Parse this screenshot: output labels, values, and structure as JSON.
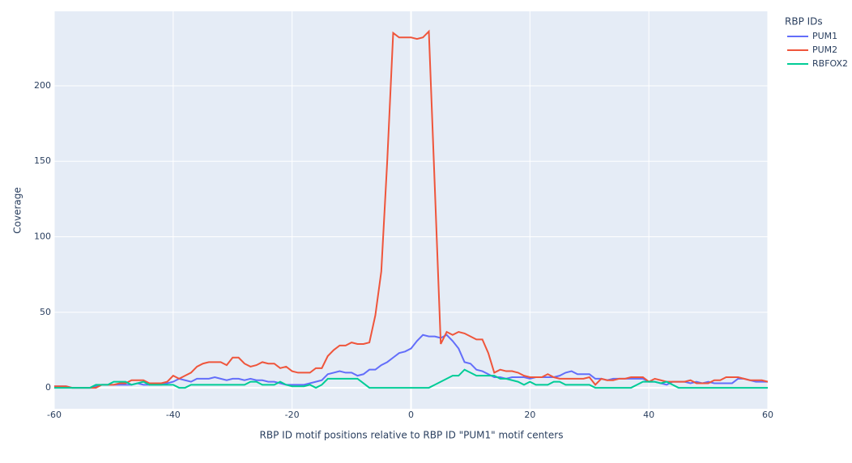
{
  "chart_data": {
    "type": "line",
    "x_label": "RBP ID motif positions relative to RBP ID \"PUM1\" motif centers",
    "y_label": "Coverage",
    "legend_title": "RBP IDs",
    "legend_position": "right",
    "grid": true,
    "x": [
      -60,
      -59,
      -58,
      -57,
      -56,
      -55,
      -54,
      -53,
      -52,
      -51,
      -50,
      -49,
      -48,
      -47,
      -46,
      -45,
      -44,
      -43,
      -42,
      -41,
      -40,
      -39,
      -38,
      -37,
      -36,
      -35,
      -34,
      -33,
      -32,
      -31,
      -30,
      -29,
      -28,
      -27,
      -26,
      -25,
      -24,
      -23,
      -22,
      -21,
      -20,
      -19,
      -18,
      -17,
      -16,
      -15,
      -14,
      -13,
      -12,
      -11,
      -10,
      -9,
      -8,
      -7,
      -6,
      -5,
      -4,
      -3,
      -2,
      -1,
      0,
      1,
      2,
      3,
      4,
      5,
      6,
      7,
      8,
      9,
      10,
      11,
      12,
      13,
      14,
      15,
      16,
      17,
      18,
      19,
      20,
      21,
      22,
      23,
      24,
      25,
      26,
      27,
      28,
      29,
      30,
      31,
      32,
      33,
      34,
      35,
      36,
      37,
      38,
      39,
      40,
      41,
      42,
      43,
      44,
      45,
      46,
      47,
      48,
      49,
      50,
      51,
      52,
      53,
      54,
      55,
      56,
      57,
      58,
      59,
      60
    ],
    "series": [
      {
        "name": "PUM1",
        "color": "#636efa",
        "values": [
          1,
          1,
          1,
          0,
          0,
          0,
          0,
          1,
          2,
          2,
          2,
          2,
          2,
          2,
          3,
          2,
          2,
          2,
          2,
          3,
          4,
          6,
          5,
          4,
          6,
          6,
          6,
          7,
          6,
          5,
          6,
          6,
          5,
          6,
          5,
          5,
          4,
          4,
          3,
          2,
          2,
          2,
          2,
          3,
          4,
          5,
          9,
          10,
          11,
          10,
          10,
          8,
          9,
          12,
          12,
          15,
          17,
          20,
          23,
          24,
          26,
          31,
          35,
          34,
          34,
          33,
          35,
          31,
          26,
          17,
          16,
          12,
          11,
          9,
          7,
          7,
          6,
          7,
          7,
          7,
          6,
          7,
          7,
          7,
          7,
          8,
          10,
          11,
          9,
          9,
          9,
          6,
          6,
          5,
          6,
          6,
          6,
          6,
          6,
          6,
          4,
          4,
          3,
          2,
          4,
          4,
          4,
          3,
          4,
          3,
          4,
          3,
          3,
          3,
          3,
          6,
          6,
          5,
          4,
          4,
          4
        ]
      },
      {
        "name": "PUM2",
        "color": "#EF553B",
        "values": [
          1,
          1,
          1,
          0,
          0,
          0,
          0,
          0,
          2,
          2,
          2,
          3,
          3,
          5,
          5,
          5,
          3,
          3,
          3,
          4,
          8,
          6,
          8,
          10,
          14,
          16,
          17,
          17,
          17,
          15,
          20,
          20,
          16,
          14,
          15,
          17,
          16,
          16,
          13,
          14,
          11,
          10,
          10,
          10,
          13,
          13,
          21,
          25,
          28,
          28,
          30,
          29,
          29,
          30,
          48,
          77,
          150,
          235,
          232,
          232,
          232,
          231,
          232,
          236,
          133,
          29,
          37,
          35,
          37,
          36,
          34,
          32,
          32,
          23,
          10,
          12,
          11,
          11,
          10,
          8,
          7,
          7,
          7,
          9,
          7,
          6,
          6,
          6,
          6,
          6,
          7,
          2,
          6,
          5,
          5,
          6,
          6,
          7,
          7,
          7,
          4,
          6,
          5,
          4,
          4,
          4,
          4,
          5,
          3,
          3,
          3,
          5,
          5,
          7,
          7,
          7,
          6,
          5,
          5,
          5,
          4
        ]
      },
      {
        "name": "RBFOX2",
        "color": "#00cc96",
        "values": [
          0,
          0,
          0,
          0,
          0,
          0,
          0,
          2,
          2,
          2,
          4,
          4,
          4,
          2,
          3,
          4,
          2,
          2,
          2,
          2,
          2,
          0,
          0,
          2,
          2,
          2,
          2,
          2,
          2,
          2,
          2,
          2,
          2,
          4,
          4,
          2,
          2,
          2,
          4,
          2,
          1,
          1,
          1,
          2,
          0,
          2,
          6,
          6,
          6,
          6,
          6,
          6,
          3,
          0,
          0,
          0,
          0,
          0,
          0,
          0,
          0,
          0,
          0,
          0,
          2,
          4,
          6,
          8,
          8,
          12,
          10,
          8,
          8,
          8,
          8,
          6,
          6,
          5,
          4,
          2,
          4,
          2,
          2,
          2,
          4,
          4,
          2,
          2,
          2,
          2,
          2,
          0,
          0,
          0,
          0,
          0,
          0,
          0,
          2,
          4,
          4,
          4,
          3,
          4,
          2,
          0,
          0,
          0,
          0,
          0,
          0,
          0,
          0,
          0,
          0,
          0,
          0,
          0,
          0,
          0,
          0
        ]
      }
    ],
    "xlim": [
      -60,
      60
    ],
    "xticks": [
      -60,
      -40,
      -20,
      0,
      20,
      40,
      60
    ],
    "ylim": [
      -13.9,
      249.3
    ],
    "yticks": [
      0,
      50,
      100,
      150,
      200
    ]
  }
}
